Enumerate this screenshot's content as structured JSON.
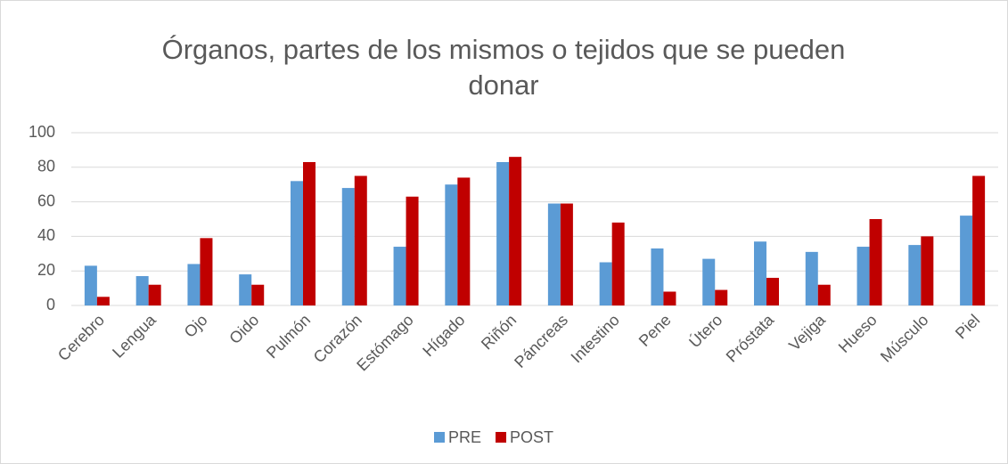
{
  "chart_data": {
    "type": "bar",
    "title": "Órganos, partes de los mismos o tejidos que se pueden donar",
    "categories": [
      "Cerebro",
      "Lengua",
      "Ojo",
      "Oido",
      "Pulmón",
      "Corazón",
      "Estómago",
      "Hígado",
      "Riñón",
      "Páncreas",
      "Intestino",
      "Pene",
      "Útero",
      "Próstata",
      "Vejiga",
      "Hueso",
      "Músculo",
      "Piel"
    ],
    "series": [
      {
        "name": "PRE",
        "color": "#5b9bd5",
        "values": [
          23,
          17,
          24,
          18,
          72,
          68,
          34,
          70,
          83,
          59,
          25,
          33,
          27,
          37,
          31,
          34,
          35,
          52
        ]
      },
      {
        "name": "POST",
        "color": "#c00000",
        "values": [
          5,
          12,
          39,
          12,
          83,
          75,
          63,
          74,
          86,
          59,
          48,
          8,
          9,
          16,
          12,
          50,
          40,
          75
        ]
      }
    ],
    "ylim": [
      0,
      100
    ],
    "yticks": [
      0,
      20,
      40,
      60,
      80,
      100
    ],
    "grid": true,
    "legend": "bottom"
  }
}
